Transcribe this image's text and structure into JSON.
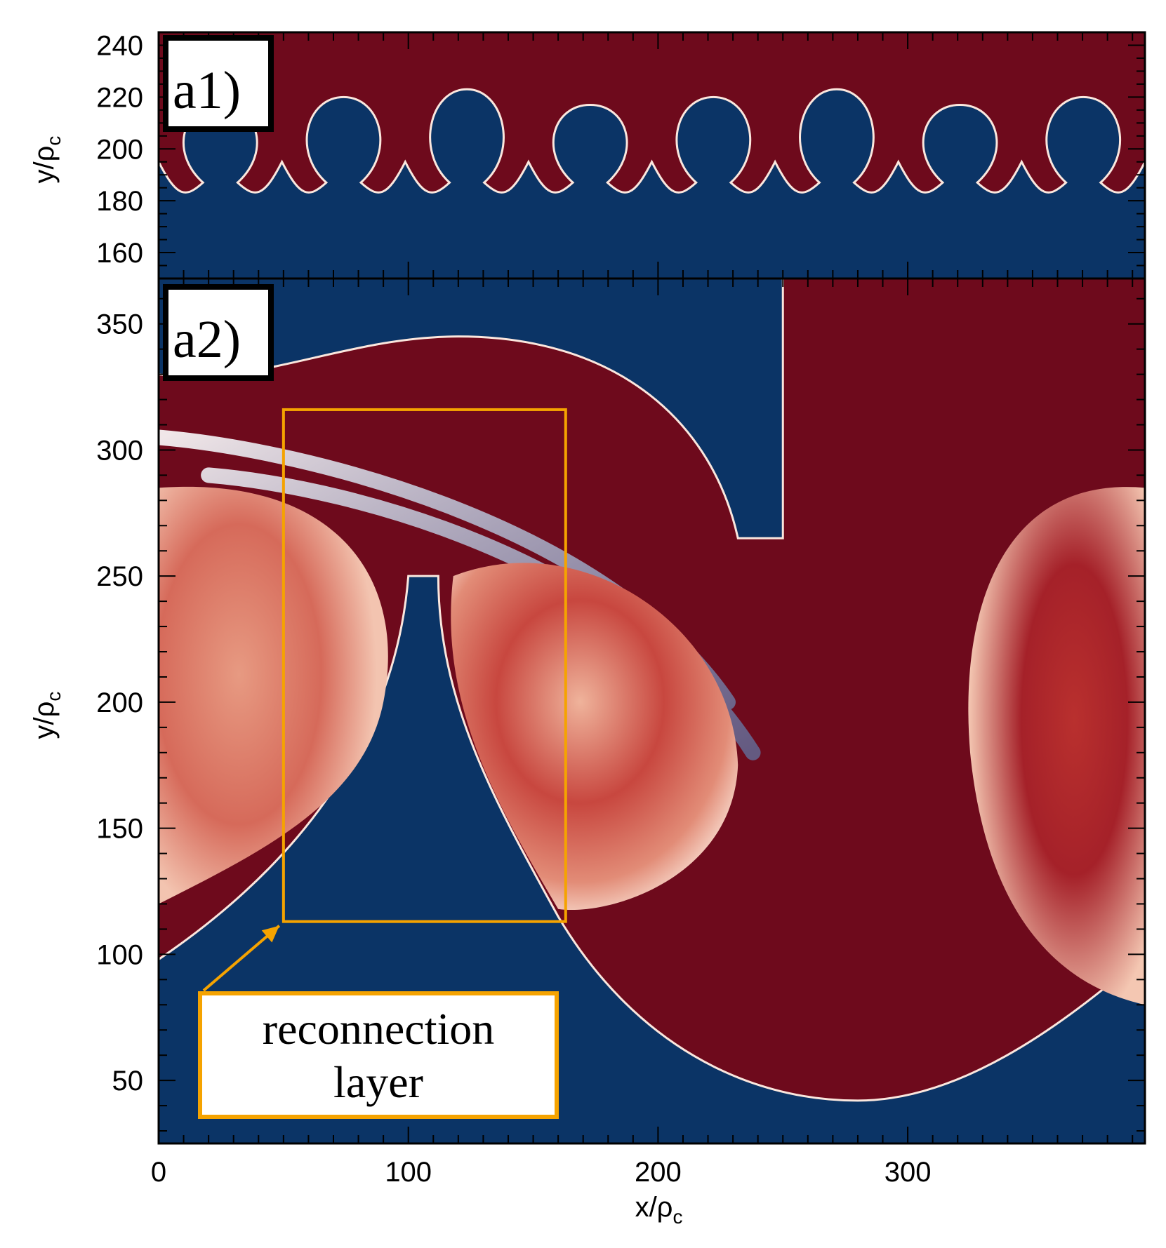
{
  "chart_data": [
    {
      "type": "heatmap",
      "panel_label": "a1)",
      "xlim": [
        0,
        395
      ],
      "ylim": [
        150,
        245
      ],
      "yticks": [
        160,
        180,
        200,
        220,
        240
      ],
      "ylabel": {
        "main": "y/ρ",
        "sub": "c"
      },
      "show_x_tick_labels": false,
      "colors": {
        "low": "#0b3466",
        "high": "#6e0a1c",
        "mid": "#f6d2c0"
      },
      "description_values": {
        "interface_mean_y": 195,
        "mushroom_count": 8
      }
    },
    {
      "type": "heatmap",
      "panel_label": "a2)",
      "xlim": [
        0,
        395
      ],
      "ylim": [
        25,
        368
      ],
      "xticks": [
        0,
        100,
        200,
        300
      ],
      "yticks": [
        50,
        100,
        150,
        200,
        250,
        300,
        350
      ],
      "xlabel": {
        "main": "x/ρ",
        "sub": "c"
      },
      "ylabel": {
        "main": "y/ρ",
        "sub": "c"
      },
      "colors": {
        "low": "#0b3466",
        "high": "#6e0a1c",
        "mid": "#f6d2c0"
      },
      "annotation": {
        "text_lines": [
          "reconnection",
          "layer"
        ],
        "box_x": [
          50,
          163
        ],
        "box_y": [
          113,
          316
        ],
        "color": "#f5a300"
      }
    }
  ]
}
